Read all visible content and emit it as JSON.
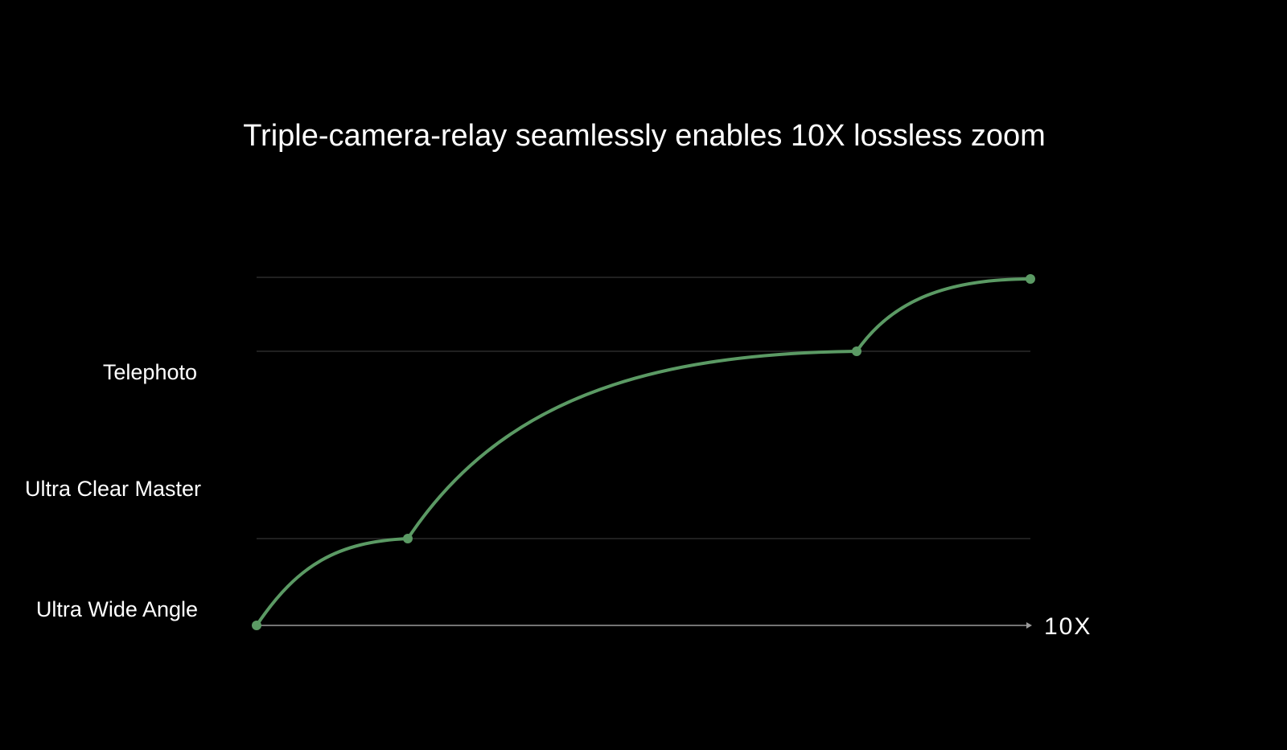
{
  "title": "Triple-camera-relay seamlessly enables 10X lossless zoom",
  "levels": [
    "Telephoto",
    "Ultra Clear Master",
    "Ultra Wide Angle"
  ],
  "x_end_label": "10X"
}
